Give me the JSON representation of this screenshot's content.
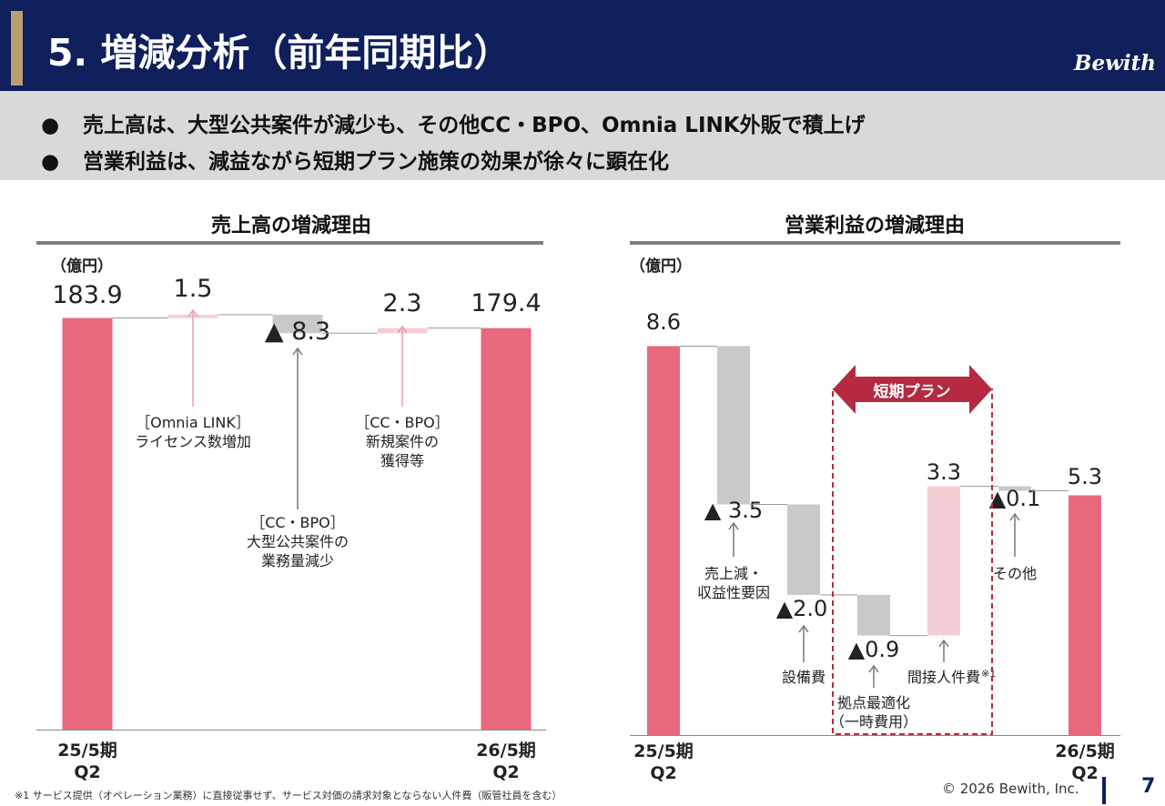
{
  "header": {
    "title": "5. 増減分析（前年同期比）",
    "logo": "Bewith",
    "background_color": "#0f1f5c",
    "accent_color": "#b7a073"
  },
  "bullets": [
    "売上高は、大型公共案件が減少も、その他CC・BPO、Omnia LINK外販で積上げ",
    "営業利益は、減益ながら短期プラン施策の効果が徐々に顕在化"
  ],
  "bullet_symbol": "●",
  "footer": {
    "footnote": "※1 サービス提供（オペレーション業務）に直接従事せず、サービス対価の請求対象とならない人件費（販管社員を含む）",
    "copyright": "© 2026 Bewith, Inc.",
    "page": "7"
  },
  "colors": {
    "primary_bar": "#e8697e",
    "increase_bar": "#f5cdd4",
    "decrease_bar": "#c9c9c9",
    "arrow_pink": "#e89aa8",
    "arrow_gray": "#777777",
    "plan_red": "#b52a3e"
  },
  "chart_data": [
    {
      "type": "waterfall",
      "title": "売上高の増減理由",
      "unit": "（億円）",
      "ylim": [
        0,
        190
      ],
      "steps": [
        {
          "label": "183.9",
          "value": 183.9,
          "kind": "total",
          "category": "25/5期\nQ2"
        },
        {
          "label": "1.5",
          "value": 1.5,
          "kind": "increase",
          "note": "［Omnia LINK］\nライセンス数増加"
        },
        {
          "label": "▲ 8.3",
          "value": -8.3,
          "kind": "decrease",
          "note": "［CC・BPO］\n大型公共案件の\n業務量減少"
        },
        {
          "label": "2.3",
          "value": 2.3,
          "kind": "increase",
          "note": "［CC・BPO］\n新規案件の\n獲得等"
        },
        {
          "label": "179.4",
          "value": 179.4,
          "kind": "total",
          "category": "26/5期\nQ2"
        }
      ]
    },
    {
      "type": "waterfall",
      "title": "営業利益の増減理由",
      "unit": "（億円）",
      "ylim": [
        0,
        10
      ],
      "plan_label": "短期プラン",
      "footnote_mark": "※1",
      "steps": [
        {
          "label": "8.6",
          "value": 8.6,
          "kind": "total",
          "category": "25/5期\nQ2"
        },
        {
          "label": "▲ 3.5",
          "value": -3.5,
          "kind": "decrease",
          "note": "売上減・\n収益性要因"
        },
        {
          "label": "▲2.0",
          "value": -2.0,
          "kind": "decrease",
          "note": "設備費"
        },
        {
          "label": "▲0.9",
          "value": -0.9,
          "kind": "decrease",
          "note": "拠点最適化\n（一時費用）"
        },
        {
          "label": "3.3",
          "value": 3.3,
          "kind": "increase",
          "note": "間接人件費"
        },
        {
          "label": "▲0.1",
          "value": -0.1,
          "kind": "decrease",
          "note": "その他"
        },
        {
          "label": "5.3",
          "value": 5.3,
          "kind": "total",
          "category": "26/5期\nQ2"
        }
      ]
    }
  ]
}
